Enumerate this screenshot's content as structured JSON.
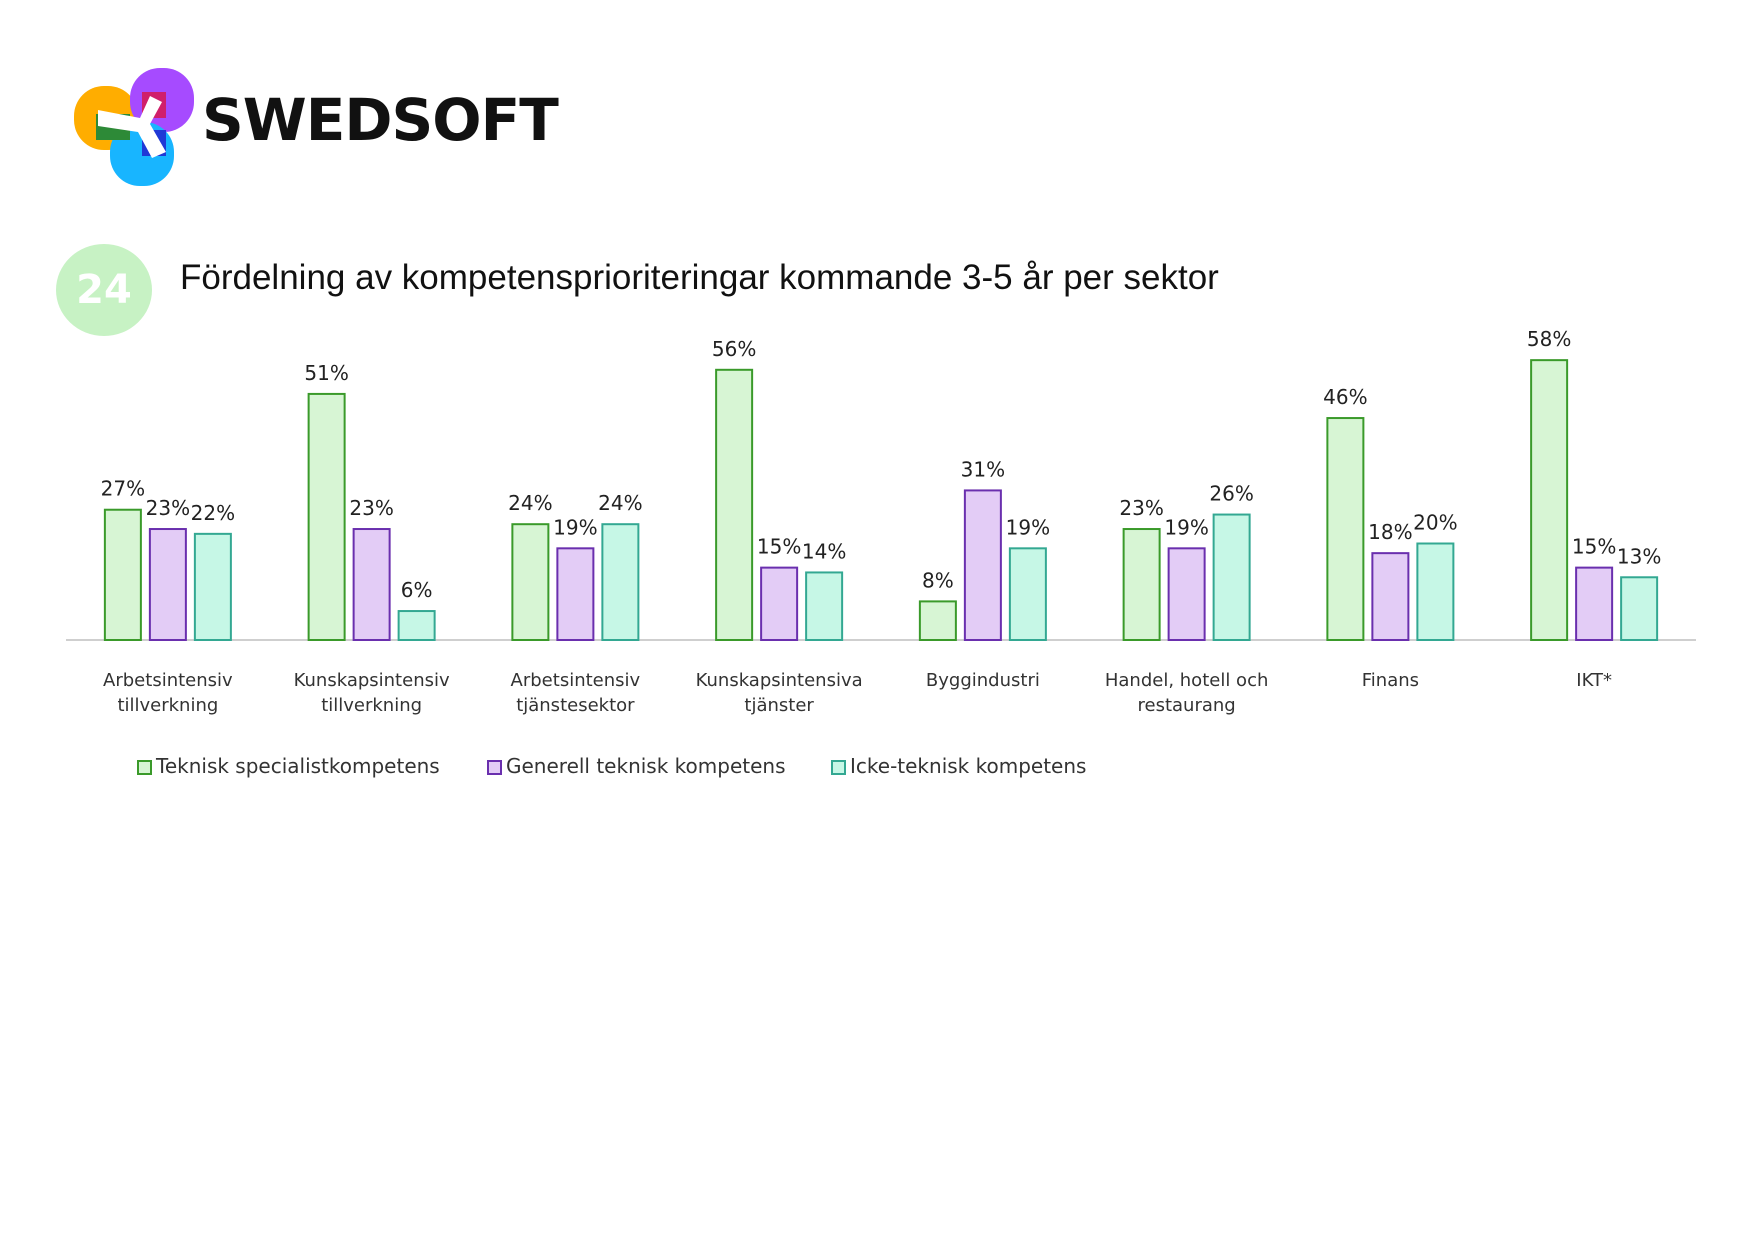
{
  "logo": {
    "text": "SWEDSOFT"
  },
  "badge": "24",
  "title": "Fördelning av kompetensprioriteringar kommande 3-5 år per sektor",
  "colors": {
    "series": [
      {
        "fill": "#d7f5d4",
        "stroke": "#3a9a2a"
      },
      {
        "fill": "#e3ccf6",
        "stroke": "#6a2fae"
      },
      {
        "fill": "#c6f7e6",
        "stroke": "#33a892"
      }
    ],
    "axis": "#cfcfcf"
  },
  "chart_data": {
    "type": "bar",
    "title": "",
    "xlabel": "",
    "ylabel": "",
    "ylim": [
      0,
      60
    ],
    "grid": false,
    "legend_position": "bottom-left",
    "categories": [
      [
        "Arbetsintensiv",
        "tillverkning"
      ],
      [
        "Kunskapsintensiv",
        "tillverkning"
      ],
      [
        "Arbetsintensiv",
        "tjänstesektor"
      ],
      [
        "Kunskapsintensiva",
        "tjänster"
      ],
      [
        "Byggindustri"
      ],
      [
        "Handel, hotell och",
        "restaurang"
      ],
      [
        "Finans"
      ],
      [
        "IKT*"
      ]
    ],
    "series": [
      {
        "name": "Teknisk specialistkompetens",
        "values": [
          27,
          51,
          24,
          56,
          8,
          23,
          46,
          58
        ]
      },
      {
        "name": "Generell teknisk kompetens",
        "values": [
          23,
          23,
          19,
          15,
          31,
          19,
          18,
          15
        ]
      },
      {
        "name": "Icke-teknisk kompetens",
        "values": [
          22,
          6,
          24,
          14,
          19,
          26,
          20,
          13
        ]
      }
    ],
    "value_suffix": "%"
  }
}
